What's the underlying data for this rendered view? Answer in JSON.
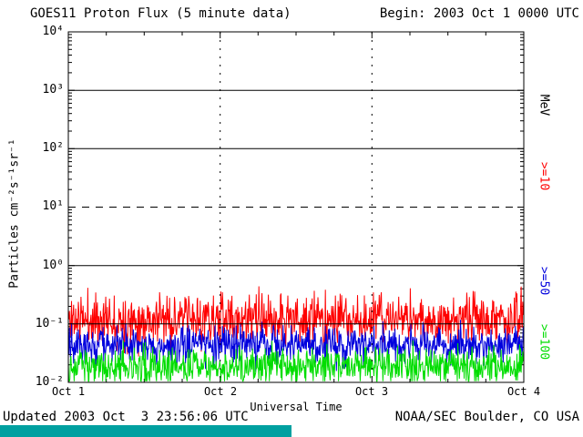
{
  "header": {
    "begin_label": "Begin: 2003 Oct 1 0000 UTC"
  },
  "footer": {
    "updated": "Updated 2003 Oct  3 23:56:06 UTC",
    "source": "NOAA/SEC Boulder, CO USA",
    "bar_color": "#00A0A0"
  },
  "chart_data": {
    "type": "line",
    "title": "GOES11 Proton Flux (5 minute data)",
    "xlabel": "Universal Time",
    "ylabel": "Particles cm⁻²s⁻¹sr⁻¹",
    "x_tick_labels": [
      "Oct 1",
      "Oct 2",
      "Oct 3",
      "Oct 4"
    ],
    "y_tick_labels": [
      "10⁴",
      "10³",
      "10²",
      "10¹",
      "10⁰",
      "10⁻¹",
      "10⁻²"
    ],
    "y_log_range": [
      -2,
      4
    ],
    "x_range_days": 3,
    "grid": "partial-horizontal, dotted day verticals",
    "right_axis_labels": [
      {
        "label": "MeV",
        "color": "#000000"
      },
      {
        "label": ">=10",
        "color": "#ff0000"
      },
      {
        "label": ">=50",
        "color": "#0000dd"
      },
      {
        "label": ">=100",
        "color": "#00dd00"
      }
    ],
    "h_gridlines": [
      {
        "log10": 3,
        "style": "solid"
      },
      {
        "log10": 2,
        "style": "solid"
      },
      {
        "log10": 1,
        "style": "dashed"
      },
      {
        "log10": 0,
        "style": "solid"
      },
      {
        "log10": -1,
        "style": "solid"
      }
    ],
    "v_gridlines_day": [
      1,
      2
    ],
    "points_per_series": 864,
    "series": [
      {
        "name": ">=10 MeV",
        "color": "#ff0000",
        "approx_flux_median": 0.12,
        "log10_mean": -0.92,
        "log10_spread": 0.75,
        "seed": 11
      },
      {
        "name": ">=50 MeV",
        "color": "#0000dd",
        "approx_flux_median": 0.045,
        "log10_mean": -1.35,
        "log10_spread": 0.55,
        "seed": 52
      },
      {
        "name": ">=100 MeV",
        "color": "#00dd00",
        "approx_flux_median": 0.019,
        "log10_mean": -1.72,
        "log10_spread": 0.55,
        "seed": 103
      }
    ]
  }
}
